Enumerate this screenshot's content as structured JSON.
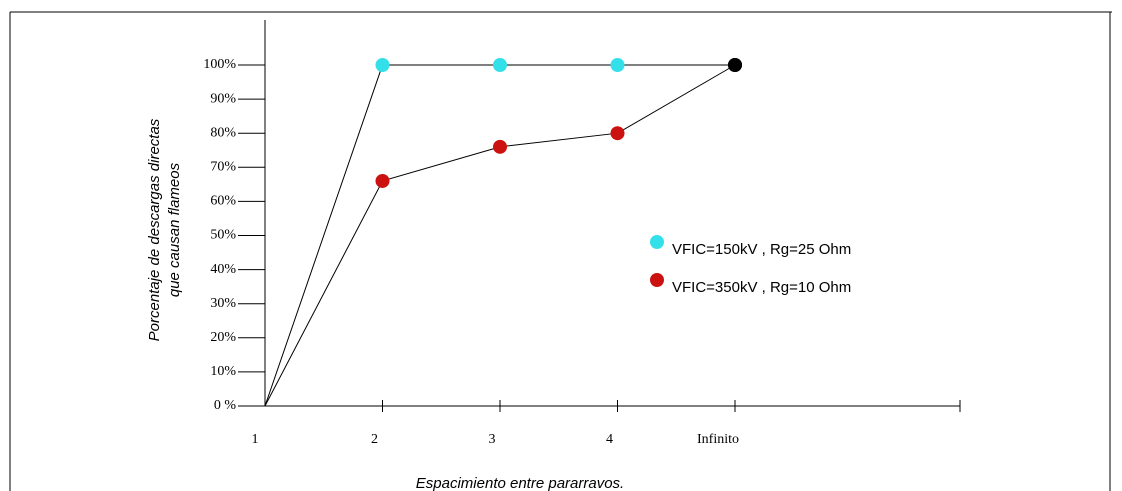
{
  "chart_data": {
    "type": "line",
    "x_label": "Espacimiento entre pararravos.",
    "y_label": [
      "Porcentaje de descargas directas",
      "que causan flameos"
    ],
    "categories": [
      "1",
      "2",
      "3",
      "4",
      "Infinito"
    ],
    "series": [
      {
        "name": "VFIC=150kV , Rg=25 Ohm",
        "color": "#33e0ea",
        "values": [
          0,
          100,
          100,
          100,
          100
        ]
      },
      {
        "name": "VFIC=350kV , Rg=10 Ohm",
        "color": "#cc1111",
        "values": [
          0,
          66,
          76,
          80,
          100
        ]
      }
    ],
    "end_marker_color": "#000000",
    "ylim": [
      0,
      100
    ],
    "yticks": [
      {
        "value": 0,
        "label": "0 %"
      },
      {
        "value": 10,
        "label": "10%"
      },
      {
        "value": 20,
        "label": "20%"
      },
      {
        "value": 30,
        "label": "30%"
      },
      {
        "value": 40,
        "label": "40%"
      },
      {
        "value": 50,
        "label": "50%"
      },
      {
        "value": 60,
        "label": "60%"
      },
      {
        "value": 70,
        "label": "70%"
      },
      {
        "value": 80,
        "label": "80%"
      },
      {
        "value": 90,
        "label": "90%"
      },
      {
        "value": 100,
        "label": "100%"
      }
    ]
  }
}
